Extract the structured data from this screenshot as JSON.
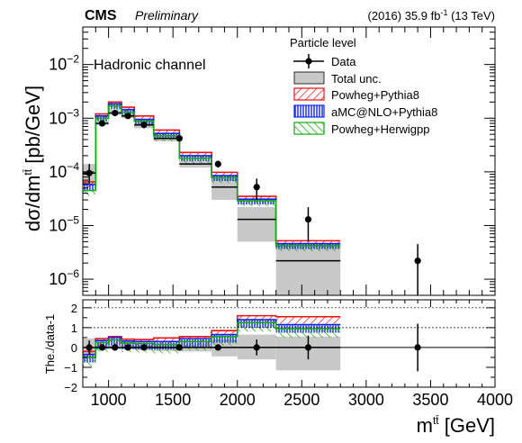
{
  "header": {
    "experiment": "CMS",
    "status": "Preliminary",
    "lumi_prefix": "(2016) 35.9 fb",
    "lumi_exp": "-1",
    "lumi_suffix": " (13 TeV)"
  },
  "channel_label": "Hadronic channel",
  "legend": {
    "title": "Particle level",
    "entries": [
      {
        "key": "data",
        "label": "Data"
      },
      {
        "key": "unc",
        "label": "Total unc."
      },
      {
        "key": "pp8",
        "label": "Powheg+Pythia8"
      },
      {
        "key": "amc",
        "label": "aMC@NLO+Pythia8"
      },
      {
        "key": "phw",
        "label": "Powheg+Herwigpp"
      }
    ]
  },
  "colors": {
    "data": "#000000",
    "unc_fill": "#c8c8c8",
    "pp8": "#ee1111",
    "amc": "#1122ee",
    "phw": "#11aa11",
    "ratio_ref": "#000000"
  },
  "chart_data": [
    {
      "type": "histogram",
      "panel": "main",
      "ylabel_main": "dσ/dm",
      "ylabel_sup": "tt̄",
      "ylabel_units": " [pb/GeV]",
      "yscale": "log",
      "ylim": [
        5e-07,
        0.05
      ],
      "xlim": [
        800,
        4000
      ],
      "bin_edges": [
        800,
        900,
        1000,
        1100,
        1200,
        1350,
        1550,
        1800,
        2000,
        2300,
        2800,
        4000
      ],
      "series": [
        {
          "name": "Data",
          "key": "data",
          "values": [
            9.5e-05,
            0.0008,
            0.00125,
            0.0011,
            0.00075,
            0.00042,
            0.00014,
            5.2e-05,
            1.3e-05,
            2.2e-06
          ],
          "x_points": [
            850,
            950,
            1050,
            1150,
            1275,
            1550,
            1850,
            2150,
            2550,
            3400
          ]
        },
        {
          "name": "Total unc.",
          "key": "unc",
          "low": [
            6e-05,
            0.00075,
            0.00115,
            0.001,
            0.00065,
            0.00037,
            0.00012,
            3e-05,
            5e-06,
            5e-07
          ],
          "high": [
            0.00014,
            0.00085,
            0.00135,
            0.0012,
            0.00085,
            0.00048,
            0.00016,
            7.5e-05,
            2.2e-05,
            4.5e-06
          ]
        },
        {
          "name": "Powheg+Pythia8",
          "key": "pp8",
          "values": [
            6.5e-05,
            0.0012,
            0.002,
            0.0016,
            0.0011,
            0.0006,
            0.00023,
            9.8e-05,
            3.5e-05,
            5.2e-06
          ]
        },
        {
          "name": "aMC@NLO+Pythia8",
          "key": "amc",
          "values": [
            5.8e-05,
            0.0011,
            0.00185,
            0.00145,
            0.00095,
            0.00052,
            0.0002,
            8.5e-05,
            3.1e-05,
            4.6e-06
          ]
        },
        {
          "name": "Powheg+Herwigpp",
          "key": "phw",
          "values": [
            4.5e-05,
            0.001,
            0.0017,
            0.0013,
            0.00088,
            0.00047,
            0.00018,
            7.8e-05,
            2.9e-05,
            4.2e-06
          ]
        }
      ],
      "y_tick_labels": [
        {
          "value": 1e-06,
          "base": "10",
          "exp": "−6"
        },
        {
          "value": 1e-05,
          "base": "10",
          "exp": "−5"
        },
        {
          "value": 0.0001,
          "base": "10",
          "exp": "−4"
        },
        {
          "value": 0.001,
          "base": "10",
          "exp": "−3"
        },
        {
          "value": 0.01,
          "base": "10",
          "exp": "−2"
        }
      ]
    },
    {
      "type": "histogram",
      "panel": "ratio",
      "ylabel": "The./data-1",
      "ylim": [
        -2,
        2.4
      ],
      "xlim": [
        800,
        4000
      ],
      "xlabel_main": "m",
      "xlabel_sup": "tt̄",
      "xlabel_units": " [GeV]",
      "bin_edges": [
        800,
        900,
        1000,
        1100,
        1200,
        1350,
        1550,
        1800,
        2000,
        2300,
        2800,
        4000
      ],
      "y_ticks": [
        -2,
        -1,
        0,
        1,
        2
      ],
      "y_tick_labels": [
        "−2",
        "−1",
        "0",
        "1",
        "2"
      ],
      "x_ticks": [
        1000,
        1500,
        2000,
        2500,
        3000,
        3500,
        4000
      ],
      "x_tick_labels": [
        "1000",
        "1500",
        "2000",
        "2500",
        "3000",
        "3500",
        "4000"
      ],
      "series": [
        {
          "name": "Data",
          "key": "data",
          "values": [
            0,
            0,
            0,
            0,
            0,
            0,
            0,
            0,
            0,
            0
          ],
          "err": [
            0.35,
            0.06,
            0.05,
            0.05,
            0.06,
            0.08,
            0.1,
            0.4,
            0.6,
            1.2
          ],
          "x_points": [
            850,
            950,
            1050,
            1150,
            1275,
            1550,
            1850,
            2150,
            2550,
            3400
          ]
        },
        {
          "name": "Total unc.",
          "key": "unc",
          "low": [
            -0.55,
            -0.1,
            -0.08,
            -0.08,
            -0.12,
            -0.18,
            -0.2,
            -0.45,
            -0.6,
            -1.15
          ],
          "high": [
            0.45,
            0.1,
            0.08,
            0.1,
            0.12,
            0.15,
            0.15,
            0.4,
            0.65,
            0.55
          ]
        },
        {
          "name": "Powheg+Pythia8",
          "key": "pp8",
          "values": [
            -0.2,
            0.45,
            0.55,
            0.42,
            0.4,
            0.48,
            0.55,
            0.85,
            1.6,
            1.55
          ]
        },
        {
          "name": "aMC@NLO+Pythia8",
          "key": "amc",
          "values": [
            -0.35,
            0.35,
            0.5,
            0.32,
            0.3,
            0.3,
            0.45,
            0.65,
            1.4,
            1.15
          ]
        },
        {
          "name": "Powheg+Herwigpp",
          "key": "phw",
          "values": [
            -0.5,
            0.25,
            0.38,
            0.22,
            0.2,
            0.15,
            0.3,
            0.55,
            1.25,
            0.95
          ]
        }
      ]
    }
  ]
}
